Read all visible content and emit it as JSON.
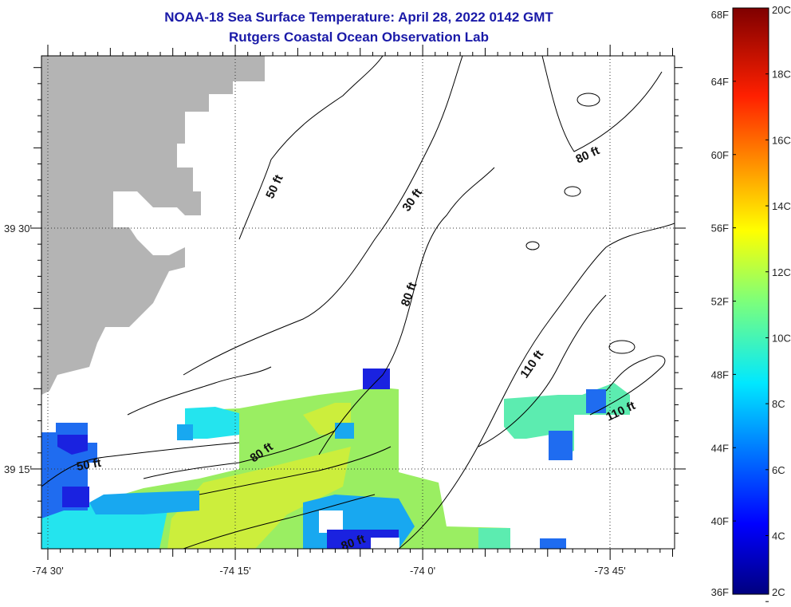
{
  "title": {
    "line1": "NOAA-18 Sea Surface Temperature:  April 28, 2022 0142 GMT",
    "line2": "Rutgers Coastal Ocean Observation Lab"
  },
  "map": {
    "lon_labels": [
      {
        "value": -74.5,
        "label": "-74 30'"
      },
      {
        "value": -74.25,
        "label": "-74 15'"
      },
      {
        "value": -74.0,
        "label": "-74 0'"
      },
      {
        "value": -73.75,
        "label": "-73 45'"
      }
    ],
    "lat_labels": [
      {
        "value": 39.5,
        "label": "39 30'"
      },
      {
        "value": 39.25,
        "label": "39 15'"
      }
    ],
    "land_color": "#b4b4b4",
    "contour_labels": [
      "50 ft",
      "30 ft",
      "80 ft",
      "80 ft",
      "110 ft",
      "110 ft",
      "50 ft",
      "80 ft",
      "80 ft"
    ]
  },
  "colorbar": {
    "f_labels": [
      "68F",
      "64F",
      "60F",
      "56F",
      "52F",
      "48F",
      "44F",
      "40F",
      "36F"
    ],
    "f_values": [
      68,
      64,
      60,
      56,
      52,
      48,
      44,
      40,
      36
    ],
    "c_labels": [
      "20C",
      "18C",
      "16C",
      "14C",
      "12C",
      "10C",
      "8C",
      "6C",
      "4C",
      "2C"
    ],
    "c_values": [
      20,
      18,
      16,
      14,
      12,
      10,
      8,
      6,
      4,
      2
    ],
    "range_f": [
      36,
      68
    ]
  },
  "sst_colors": {
    "dark_blue": "#1a22e0",
    "blue": "#1f6cf0",
    "light_blue": "#18a8f0",
    "cyan": "#24e4ee",
    "aqua_green": "#5cecb0",
    "green": "#9aee62",
    "yellow_green": "#ccee3c"
  }
}
